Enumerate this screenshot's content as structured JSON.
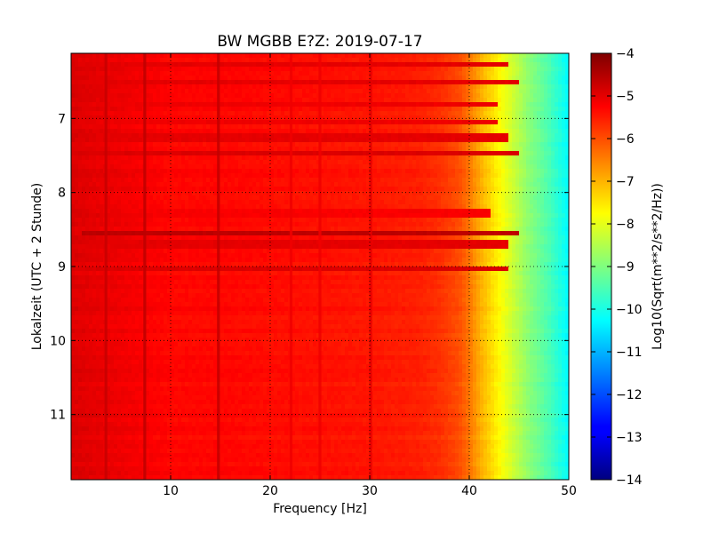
{
  "chart_data": {
    "type": "heatmap",
    "title": "BW MGBB E?Z: 2019-07-17",
    "xlabel": "Frequency [Hz]",
    "ylabel": "Lokalzeit (UTC + 2 Stunde)",
    "xlim": [
      0,
      50
    ],
    "ylim": [
      11.88,
      6.12
    ],
    "y_inverted": true,
    "grid": true,
    "x_ticks": [
      10,
      20,
      30,
      40,
      50
    ],
    "x_tick_labels": [
      "10",
      "20",
      "30",
      "40",
      "50"
    ],
    "y_ticks": [
      7,
      8,
      9,
      10,
      11
    ],
    "y_tick_labels": [
      "7",
      "8",
      "9",
      "10",
      "11"
    ],
    "colormap": "jet",
    "colorbar": {
      "label": "Log10(Sqrt(m**2/s**2/Hz))",
      "range": [
        -14,
        -4
      ],
      "ticks": [
        -4,
        -5,
        -6,
        -7,
        -8,
        -9,
        -10,
        -11,
        -12,
        -13,
        -14
      ],
      "tick_labels": [
        "−4",
        "−5",
        "−6",
        "−7",
        "−8",
        "−9",
        "−10",
        "−11",
        "−12",
        "−13",
        "−14"
      ]
    },
    "frequency_profile": {
      "frequency_hz": [
        0,
        2,
        5,
        10,
        15,
        20,
        25,
        30,
        35,
        37,
        39,
        40,
        41,
        42,
        43,
        44,
        45,
        46,
        47,
        48,
        49,
        50
      ],
      "log10_amplitude": [
        -4.9,
        -5.0,
        -5.1,
        -5.3,
        -5.3,
        -5.35,
        -5.4,
        -5.45,
        -5.55,
        -5.7,
        -6.0,
        -6.4,
        -6.9,
        -7.3,
        -7.7,
        -8.1,
        -8.5,
        -8.9,
        -9.2,
        -9.5,
        -9.9,
        -10.3
      ]
    },
    "spectral_lines": [
      {
        "frequency_hz": 3.5,
        "log10_amplitude": -4.7
      },
      {
        "frequency_hz": 7.4,
        "log10_amplitude": -4.6
      },
      {
        "frequency_hz": 14.8,
        "log10_amplitude": -4.65
      },
      {
        "frequency_hz": 22.1,
        "log10_amplitude": -5.1
      },
      {
        "frequency_hz": 25.0,
        "log10_amplitude": -5.1
      },
      {
        "frequency_hz": 30.1,
        "log10_amplitude": -5.0
      }
    ],
    "time_bands": [
      {
        "time": 6.28,
        "log10_amplitude": -5.0,
        "max_frequency_hz": 44
      },
      {
        "time": 6.52,
        "log10_amplitude": -5.0,
        "max_frequency_hz": 45
      },
      {
        "time": 6.82,
        "log10_amplitude": -5.1,
        "max_frequency_hz": 43
      },
      {
        "time": 7.05,
        "log10_amplitude": -5.1,
        "max_frequency_hz": 43
      },
      {
        "time": 7.25,
        "log10_amplitude": -5.0,
        "max_frequency_hz": 44
      },
      {
        "time": 7.48,
        "log10_amplitude": -4.9,
        "max_frequency_hz": 45
      },
      {
        "time": 8.28,
        "log10_amplitude": -5.2,
        "max_frequency_hz": 42
      },
      {
        "time": 8.55,
        "log10_amplitude": -4.6,
        "max_frequency_hz": 45
      },
      {
        "time": 8.7,
        "log10_amplitude": -5.0,
        "max_frequency_hz": 44
      },
      {
        "time": 9.03,
        "log10_amplitude": -4.9,
        "max_frequency_hz": 44
      }
    ]
  }
}
